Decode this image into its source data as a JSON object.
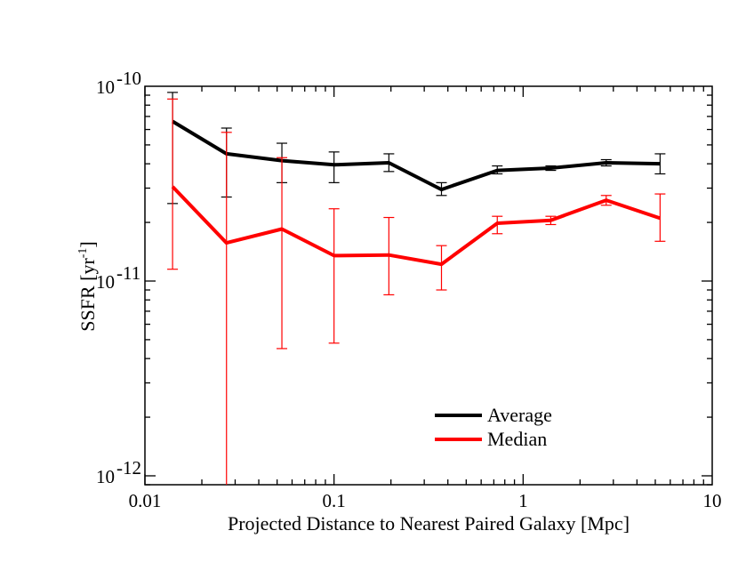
{
  "chart_data": {
    "type": "line",
    "xlabel": "Projected Distance to Nearest Paired Galaxy [Mpc]",
    "ylabel": "SSFR [yr",
    "ylabel_sup": "-1",
    "ylabel_close": "]",
    "xscale": "log",
    "yscale": "log",
    "xlim": [
      0.01,
      10
    ],
    "ylim": [
      9e-13,
      1e-10
    ],
    "grid": false,
    "legend_position": "lower-right",
    "x_ticks": [
      {
        "value": 0.01,
        "label": "0.01"
      },
      {
        "value": 0.1,
        "label": "0.1"
      },
      {
        "value": 1,
        "label": "1"
      },
      {
        "value": 10,
        "label": "10"
      }
    ],
    "y_ticks": [
      {
        "value": 1e-12,
        "base": "10",
        "exp": "-12"
      },
      {
        "value": 1e-11,
        "base": "10",
        "exp": "-11"
      },
      {
        "value": 1e-10,
        "base": "10",
        "exp": "-10"
      }
    ],
    "x": [
      0.014,
      0.027,
      0.053,
      0.1,
      0.195,
      0.37,
      0.73,
      1.4,
      2.75,
      5.3
    ],
    "series": [
      {
        "name": "Average",
        "color": "#000000",
        "values": [
          6.6e-11,
          4.5e-11,
          4.15e-11,
          3.95e-11,
          4.05e-11,
          2.95e-11,
          3.7e-11,
          3.8e-11,
          4.05e-11,
          4e-11
        ],
        "err_low": [
          2.5e-11,
          2.7e-11,
          3.2e-11,
          3.2e-11,
          3.65e-11,
          2.75e-11,
          3.55e-11,
          3.7e-11,
          3.9e-11,
          3.55e-11
        ],
        "err_high": [
          9.3e-11,
          6.1e-11,
          5.1e-11,
          4.6e-11,
          4.5e-11,
          3.2e-11,
          3.9e-11,
          3.9e-11,
          4.2e-11,
          4.5e-11
        ]
      },
      {
        "name": "Median",
        "color": "#ff0000",
        "values": [
          3.05e-11,
          1.57e-11,
          1.85e-11,
          1.35e-11,
          1.36e-11,
          1.22e-11,
          1.98e-11,
          2.05e-11,
          2.6e-11,
          2.1e-11
        ],
        "err_low": [
          1.15e-11,
          9e-13,
          4.5e-12,
          4.8e-12,
          8.5e-12,
          9e-12,
          1.75e-11,
          1.95e-11,
          2.45e-11,
          1.6e-11
        ],
        "err_high": [
          8.6e-11,
          5.8e-11,
          4.3e-11,
          2.35e-11,
          2.12e-11,
          1.52e-11,
          2.15e-11,
          2.15e-11,
          2.75e-11,
          2.8e-11
        ]
      }
    ]
  }
}
